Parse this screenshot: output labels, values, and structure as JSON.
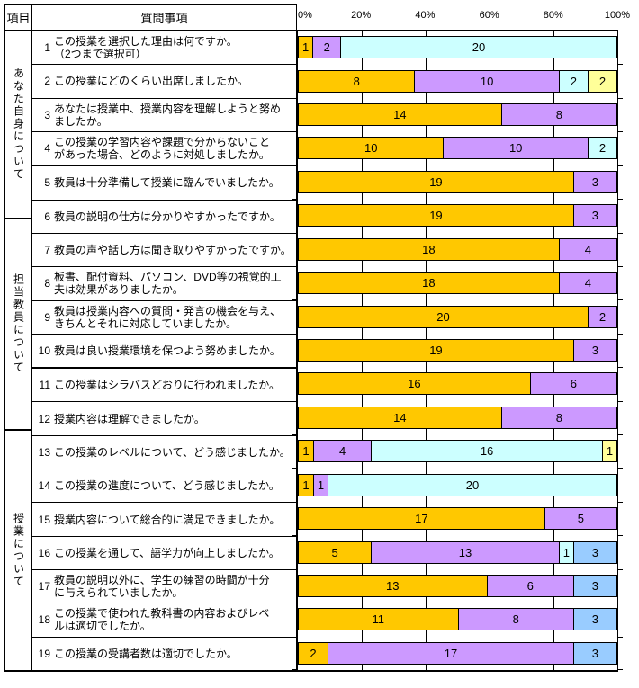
{
  "table": {
    "item_header": "項目",
    "question_header": "質問事項"
  },
  "groups": [
    {
      "label": "あなた自身について",
      "row_count": 4
    },
    {
      "label": "担当教員について",
      "row_count": 6
    },
    {
      "label": "授業について",
      "row_count": 9
    }
  ],
  "palette": {
    "gold": "#FFC800",
    "lavender": "#CC99FF",
    "turquoise": "#CCFFFF",
    "light_yellow": "#FFFF99",
    "pale_blue": "#99CCFF"
  },
  "chart_data": {
    "type": "bar",
    "stacked": true,
    "horizontal": true,
    "title": "",
    "x_ticks": [
      "0%",
      "20%",
      "40%",
      "60%",
      "80%",
      "100%"
    ],
    "xlim": [
      0,
      100
    ],
    "grid": true,
    "rows": [
      {
        "no": "1",
        "group": "あなた自身について",
        "question": "この授業を選択した理由は何ですか。\n（2つまで選択可）",
        "segments": [
          {
            "color": "gold",
            "value": 1
          },
          {
            "color": "lavender",
            "value": 2
          },
          {
            "color": "turquoise",
            "value": 20
          }
        ]
      },
      {
        "no": "2",
        "group": "あなた自身について",
        "question": "この授業にどのくらい出席しましたか。",
        "segments": [
          {
            "color": "gold",
            "value": 8
          },
          {
            "color": "lavender",
            "value": 10
          },
          {
            "color": "turquoise",
            "value": 2
          },
          {
            "color": "light_yellow",
            "value": 2
          }
        ]
      },
      {
        "no": "3",
        "group": "あなた自身について",
        "question": "あなたは授業中、授業内容を理解しようと努め\nましたか。",
        "segments": [
          {
            "color": "gold",
            "value": 14
          },
          {
            "color": "lavender",
            "value": 8
          }
        ]
      },
      {
        "no": "4",
        "group": "あなた自身について",
        "question": "この授業の学習内容や課題で分からないこと\nがあった場合、どのように対処しましたか。",
        "segments": [
          {
            "color": "gold",
            "value": 10
          },
          {
            "color": "lavender",
            "value": 10
          },
          {
            "color": "turquoise",
            "value": 2
          }
        ]
      },
      {
        "no": "5",
        "group": "担当教員について",
        "question": "教員は十分準備して授業に臨んでいましたか。",
        "segments": [
          {
            "color": "gold",
            "value": 19
          },
          {
            "color": "lavender",
            "value": 3
          }
        ]
      },
      {
        "no": "6",
        "group": "担当教員について",
        "question": "教員の説明の仕方は分かりやすかったですか。",
        "segments": [
          {
            "color": "gold",
            "value": 19
          },
          {
            "color": "lavender",
            "value": 3
          }
        ]
      },
      {
        "no": "7",
        "group": "担当教員について",
        "question": "教員の声や話し方は聞き取りやすかったですか。",
        "segments": [
          {
            "color": "gold",
            "value": 18
          },
          {
            "color": "lavender",
            "value": 4
          }
        ]
      },
      {
        "no": "8",
        "group": "担当教員について",
        "question": "板書、配付資料、パソコン、DVD等の視覚的工\n夫は効果がありましたか。",
        "segments": [
          {
            "color": "gold",
            "value": 18
          },
          {
            "color": "lavender",
            "value": 4
          }
        ]
      },
      {
        "no": "9",
        "group": "担当教員について",
        "question": "教員は授業内容への質問・発言の機会を与え、\nきちんとそれに対応していましたか。",
        "segments": [
          {
            "color": "gold",
            "value": 20
          },
          {
            "color": "lavender",
            "value": 2
          }
        ]
      },
      {
        "no": "10",
        "group": "担当教員について",
        "question": "教員は良い授業環境を保つよう努めましたか。",
        "segments": [
          {
            "color": "gold",
            "value": 19
          },
          {
            "color": "lavender",
            "value": 3
          }
        ]
      },
      {
        "no": "11",
        "group": "授業について",
        "question": "この授業はシラバスどおりに行われましたか。",
        "segments": [
          {
            "color": "gold",
            "value": 16
          },
          {
            "color": "lavender",
            "value": 6
          }
        ]
      },
      {
        "no": "12",
        "group": "授業について",
        "question": "授業内容は理解できましたか。",
        "segments": [
          {
            "color": "gold",
            "value": 14
          },
          {
            "color": "lavender",
            "value": 8
          }
        ]
      },
      {
        "no": "13",
        "group": "授業について",
        "question": "この授業のレベルについて、どう感じましたか。",
        "segments": [
          {
            "color": "gold",
            "value": 1
          },
          {
            "color": "lavender",
            "value": 4
          },
          {
            "color": "turquoise",
            "value": 16
          },
          {
            "color": "light_yellow",
            "value": 1
          }
        ]
      },
      {
        "no": "14",
        "group": "授業について",
        "question": "この授業の進度について、どう感じましたか。",
        "segments": [
          {
            "color": "gold",
            "value": 1
          },
          {
            "color": "lavender",
            "value": 1
          },
          {
            "color": "turquoise",
            "value": 20
          }
        ]
      },
      {
        "no": "15",
        "group": "授業について",
        "question": "授業内容について総合的に満足できましたか。",
        "segments": [
          {
            "color": "gold",
            "value": 17
          },
          {
            "color": "lavender",
            "value": 5
          }
        ]
      },
      {
        "no": "16",
        "group": "授業について",
        "question": "この授業を通して、語学力が向上しましたか。",
        "segments": [
          {
            "color": "gold",
            "value": 5
          },
          {
            "color": "lavender",
            "value": 13
          },
          {
            "color": "turquoise",
            "value": 1
          },
          {
            "color": "pale_blue",
            "value": 3
          }
        ]
      },
      {
        "no": "17",
        "group": "授業について",
        "question": "教員の説明以外に、学生の練習の時間が十分\nに与えられていましたか。",
        "segments": [
          {
            "color": "gold",
            "value": 13
          },
          {
            "color": "lavender",
            "value": 6
          },
          {
            "color": "pale_blue",
            "value": 3
          }
        ]
      },
      {
        "no": "18",
        "group": "授業について",
        "question": "この授業で使われた教科書の内容およびレベ\nルは適切でしたか。",
        "segments": [
          {
            "color": "gold",
            "value": 11
          },
          {
            "color": "lavender",
            "value": 8
          },
          {
            "color": "pale_blue",
            "value": 3
          }
        ]
      },
      {
        "no": "19",
        "group": "授業について",
        "question": "この授業の受講者数は適切でしたか。",
        "segments": [
          {
            "color": "gold",
            "value": 2
          },
          {
            "color": "lavender",
            "value": 17
          },
          {
            "color": "pale_blue",
            "value": 3
          }
        ]
      }
    ]
  }
}
